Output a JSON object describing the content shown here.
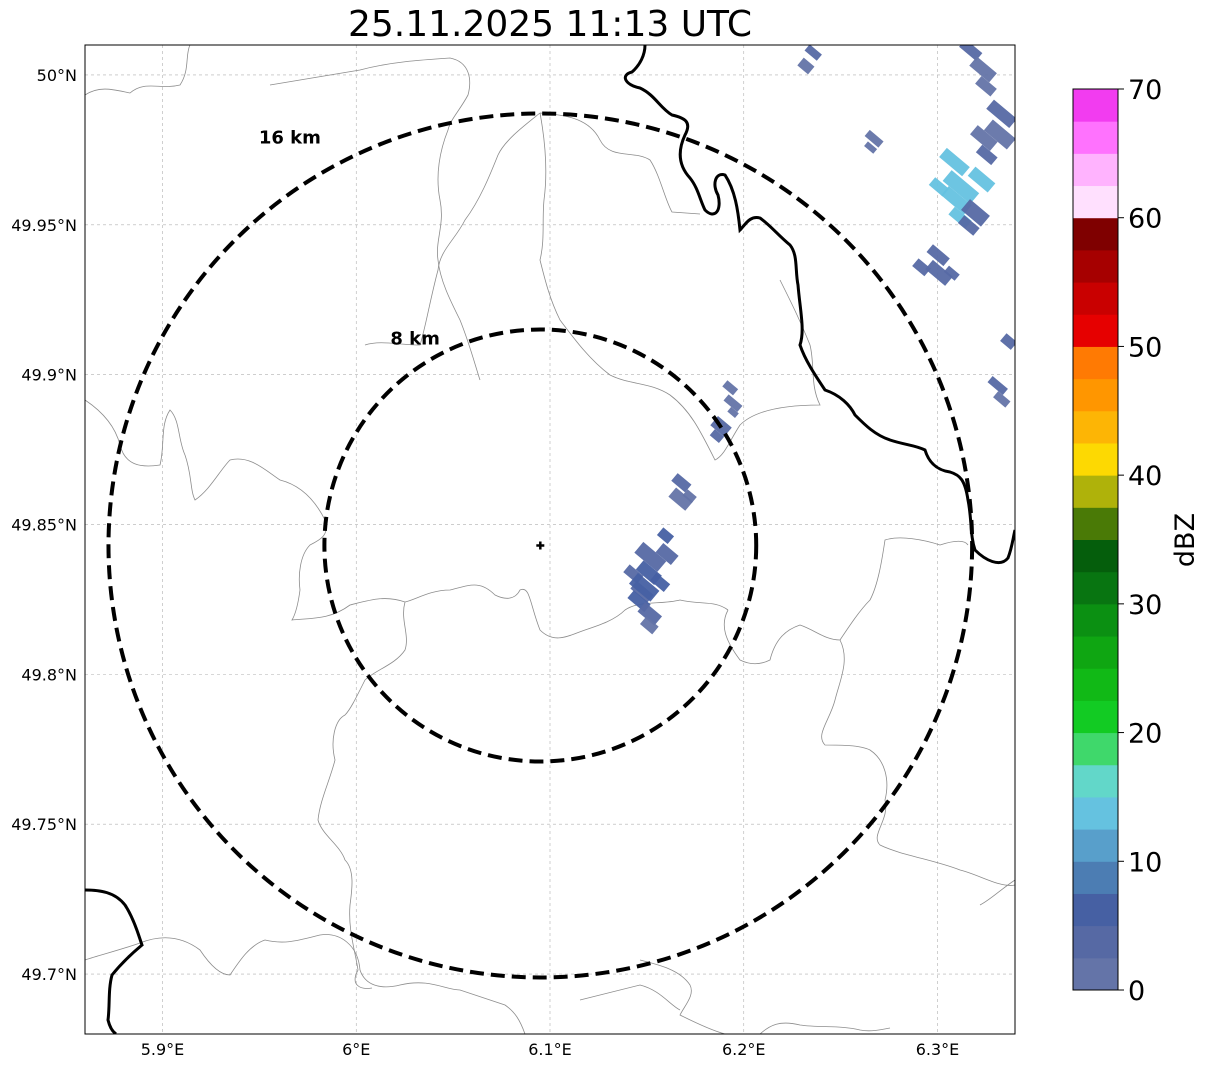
{
  "title": "25.11.2025 11:13 UTC",
  "map": {
    "extent": {
      "lon_min": 5.86,
      "lon_max": 6.34,
      "lat_min": 49.68,
      "lat_max": 50.01
    },
    "lon_ticks": [
      {
        "value": 5.9,
        "label": "5.9°E"
      },
      {
        "value": 6.0,
        "label": "6°E"
      },
      {
        "value": 6.1,
        "label": "6.1°E"
      },
      {
        "value": 6.2,
        "label": "6.2°E"
      },
      {
        "value": 6.3,
        "label": "6.3°E"
      }
    ],
    "lat_ticks": [
      {
        "value": 49.7,
        "label": "49.7°N"
      },
      {
        "value": 49.75,
        "label": "49.75°N"
      },
      {
        "value": 49.8,
        "label": "49.8°N"
      },
      {
        "value": 49.85,
        "label": "49.85°N"
      },
      {
        "value": 49.9,
        "label": "49.9°N"
      },
      {
        "value": 49.95,
        "label": "49.95°N"
      },
      {
        "value": 50.0,
        "label": "50°N"
      }
    ],
    "grid": true,
    "center": {
      "lon": 6.095,
      "lat": 49.843
    },
    "range_rings": [
      {
        "radius_km": 8,
        "label": "8 km"
      },
      {
        "radius_km": 16,
        "label": "16 km"
      }
    ]
  },
  "colorbar": {
    "label": "dBZ",
    "min": 0,
    "max": 70,
    "ticks": [
      {
        "value": 0,
        "label": "0"
      },
      {
        "value": 10,
        "label": "10"
      },
      {
        "value": 20,
        "label": "20"
      },
      {
        "value": 30,
        "label": "30"
      },
      {
        "value": 40,
        "label": "40"
      },
      {
        "value": 50,
        "label": "50"
      },
      {
        "value": 60,
        "label": "60"
      },
      {
        "value": 70,
        "label": "70"
      }
    ],
    "colors": [
      "#6474a8",
      "#5669a4",
      "#4660a3",
      "#4c7db3",
      "#589fcb",
      "#65c2e0",
      "#62d7c9",
      "#3fd86b",
      "#12cb23",
      "#11b916",
      "#0fa612",
      "#0b9012",
      "#087511",
      "#055e0c",
      "#4a7a06",
      "#afb20a",
      "#fdd902",
      "#fdb505",
      "#ff9600",
      "#ff7a03",
      "#e60000",
      "#c90000",
      "#a60000",
      "#7f0000",
      "#ffe0fe",
      "#ffb3fe",
      "#ff72fe",
      "#f23cf0"
    ]
  },
  "radar_cells": [
    {
      "lon": 6.155,
      "lat": 49.837,
      "dbz": 5
    },
    {
      "lon": 6.15,
      "lat": 49.827,
      "dbz": 6
    },
    {
      "lon": 6.152,
      "lat": 49.819,
      "dbz": 3
    },
    {
      "lon": 6.166,
      "lat": 49.861,
      "dbz": 3
    },
    {
      "lon": 6.188,
      "lat": 49.882,
      "dbz": 4
    },
    {
      "lon": 6.193,
      "lat": 49.893,
      "dbz": 2
    },
    {
      "lon": 6.314,
      "lat": 49.962,
      "dbz": 14
    },
    {
      "lon": 6.33,
      "lat": 49.98,
      "dbz": 3
    },
    {
      "lon": 6.319,
      "lat": 49.953,
      "dbz": 4
    },
    {
      "lon": 6.3,
      "lat": 49.937,
      "dbz": 4
    },
    {
      "lon": 6.323,
      "lat": 50.003,
      "dbz": 3
    },
    {
      "lon": 6.234,
      "lat": 50.005,
      "dbz": 3
    },
    {
      "lon": 6.267,
      "lat": 49.978,
      "dbz": 2
    },
    {
      "lon": 6.332,
      "lat": 49.895,
      "dbz": 3
    },
    {
      "lon": 6.336,
      "lat": 49.911,
      "dbz": 3
    }
  ]
}
